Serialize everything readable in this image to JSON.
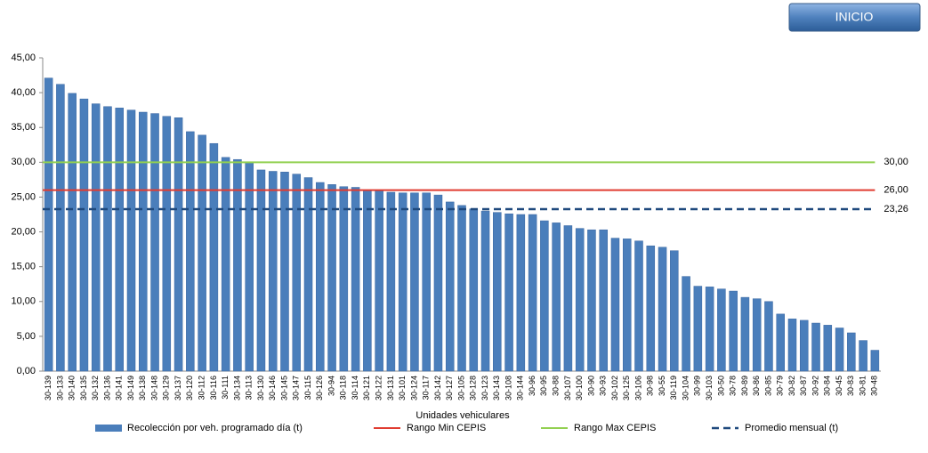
{
  "button": {
    "label": "INICIO"
  },
  "chart_data": {
    "type": "bar",
    "x_label": "Unidades vehiculares",
    "categories": [
      "30-139",
      "30-133",
      "30-140",
      "30-135",
      "30-132",
      "30-136",
      "30-141",
      "30-149",
      "30-138",
      "30-148",
      "30-129",
      "30-137",
      "30-120",
      "30-112",
      "30-116",
      "30-111",
      "30-134",
      "30-113",
      "30-130",
      "30-146",
      "30-145",
      "30-147",
      "30-115",
      "30-126",
      "30-94",
      "30-118",
      "30-114",
      "30-121",
      "30-122",
      "30-131",
      "30-101",
      "30-124",
      "30-117",
      "30-142",
      "30-127",
      "30-105",
      "30-128",
      "30-123",
      "30-143",
      "30-108",
      "30-144",
      "30-96",
      "30-95",
      "30-88",
      "30-107",
      "30-100",
      "30-90",
      "30-93",
      "30-102",
      "30-125",
      "30-106",
      "30-98",
      "30-55",
      "30-119",
      "30-104",
      "30-99",
      "30-103",
      "30-50",
      "30-78",
      "30-89",
      "30-86",
      "30-85",
      "30-79",
      "30-82",
      "30-87",
      "30-92",
      "30-84",
      "30-45",
      "30-83",
      "30-81",
      "30-48"
    ],
    "series": [
      {
        "name": "Recolección por veh. programado día (t)",
        "color": "#4a7ebb",
        "values": [
          42.1,
          41.2,
          39.9,
          39.1,
          38.4,
          38.0,
          37.8,
          37.5,
          37.2,
          37.0,
          36.6,
          36.4,
          34.4,
          33.9,
          32.7,
          30.7,
          30.4,
          30.0,
          28.9,
          28.7,
          28.6,
          28.3,
          27.8,
          27.1,
          26.8,
          26.5,
          26.4,
          26.0,
          25.9,
          25.7,
          25.6,
          25.6,
          25.6,
          25.3,
          24.3,
          23.8,
          23.3,
          23.0,
          22.8,
          22.6,
          22.5,
          22.5,
          21.6,
          21.3,
          20.9,
          20.5,
          20.3,
          20.3,
          19.1,
          19.0,
          18.7,
          18.0,
          17.8,
          17.3,
          13.6,
          12.2,
          12.1,
          11.8,
          11.5,
          10.6,
          10.4,
          10.0,
          8.2,
          7.5,
          7.3,
          6.9,
          6.6,
          6.2,
          5.5,
          4.4,
          3.0
        ]
      }
    ],
    "reference_lines": [
      {
        "name": "Rango Min CEPIS",
        "color": "#e03c31",
        "value": 26,
        "value_label": "26,00",
        "dashed": false
      },
      {
        "name": "Rango Max CEPIS",
        "color": "#92d050",
        "value": 30,
        "value_label": "30,00",
        "dashed": false
      },
      {
        "name": "Promedio mensual (t)",
        "color": "#1f497d",
        "value": 23.26,
        "value_label": "23,26",
        "dashed": true
      }
    ],
    "ylim": [
      0,
      45
    ],
    "yticks": [
      {
        "value": 0,
        "label": "0,00"
      },
      {
        "value": 5,
        "label": "5,00"
      },
      {
        "value": 10,
        "label": "10,00"
      },
      {
        "value": 15,
        "label": "15,00"
      },
      {
        "value": 20,
        "label": "20,00"
      },
      {
        "value": 25,
        "label": "25,00"
      },
      {
        "value": 30,
        "label": "30,00"
      },
      {
        "value": 35,
        "label": "35,00"
      },
      {
        "value": 40,
        "label": "40,00"
      },
      {
        "value": 45,
        "label": "45,00"
      }
    ],
    "grid": false
  }
}
